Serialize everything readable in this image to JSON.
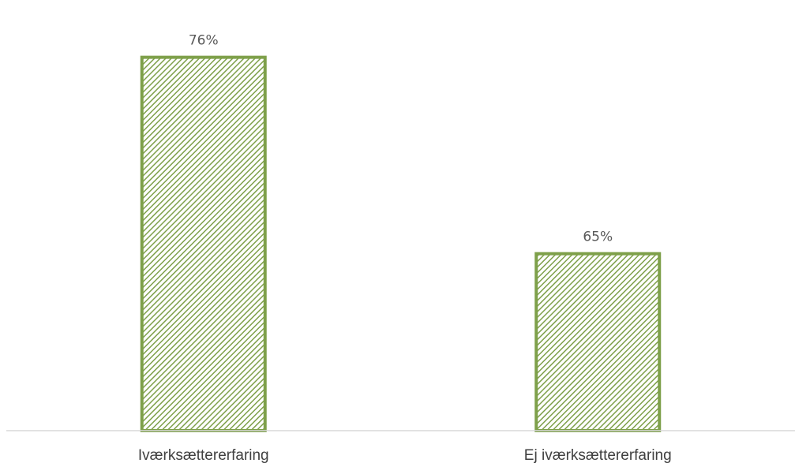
{
  "chart_data": {
    "type": "bar",
    "categories": [
      "Iværksættererfaring",
      "Ej iværksættererfaring"
    ],
    "values": [
      76,
      65
    ],
    "value_labels": [
      "76%",
      "65%"
    ],
    "value_unit": "%",
    "title": "",
    "xlabel": "",
    "ylabel": "",
    "ylim": [
      55,
      77
    ],
    "grid": false,
    "legend": "none",
    "bar_stroke_color": "#7EA04A",
    "bar_hatch_color": "#7EA04A",
    "bar_hatch_bg": "#ffffff",
    "axis_color": "#D9D9D9"
  }
}
